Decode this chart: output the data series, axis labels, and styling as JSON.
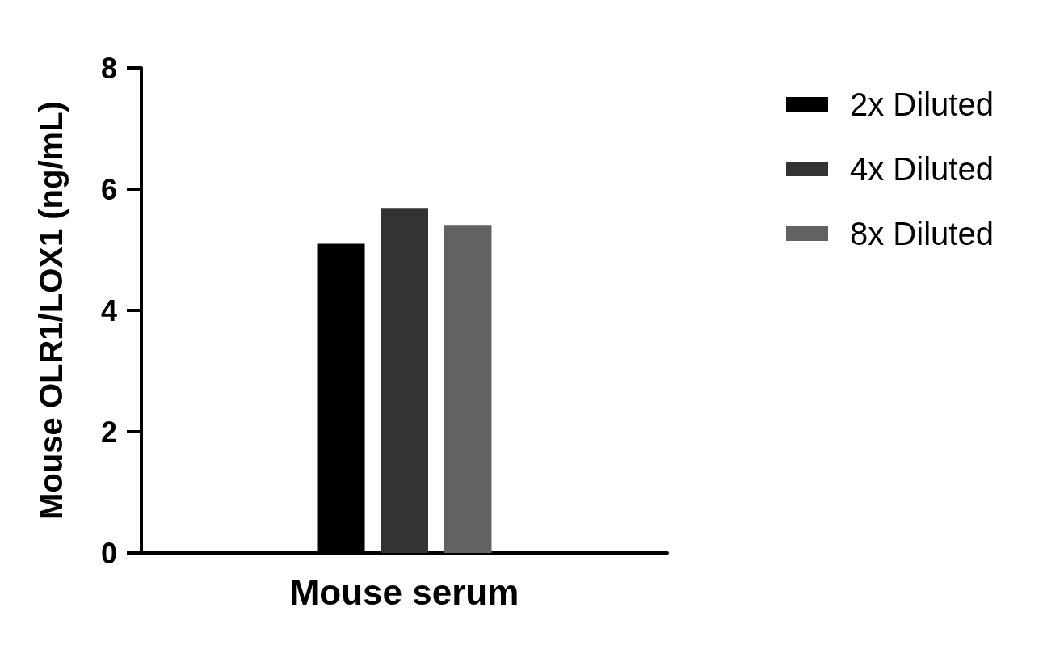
{
  "chart_data": {
    "type": "bar",
    "categories": [
      "Mouse serum"
    ],
    "series": [
      {
        "name": "2x Diluted",
        "color": "#000000",
        "values": [
          5.1
        ]
      },
      {
        "name": "4x Diluted",
        "color": "#333333",
        "values": [
          5.69
        ]
      },
      {
        "name": "8x Diluted",
        "color": "#626262",
        "values": [
          5.41
        ]
      }
    ],
    "ylabel": "Mouse OLR1/LOX1 (ng/mL)",
    "ylim": [
      0,
      8
    ],
    "yticks": [
      0,
      2,
      4,
      6,
      8
    ],
    "grid": false,
    "legend": "top right"
  }
}
